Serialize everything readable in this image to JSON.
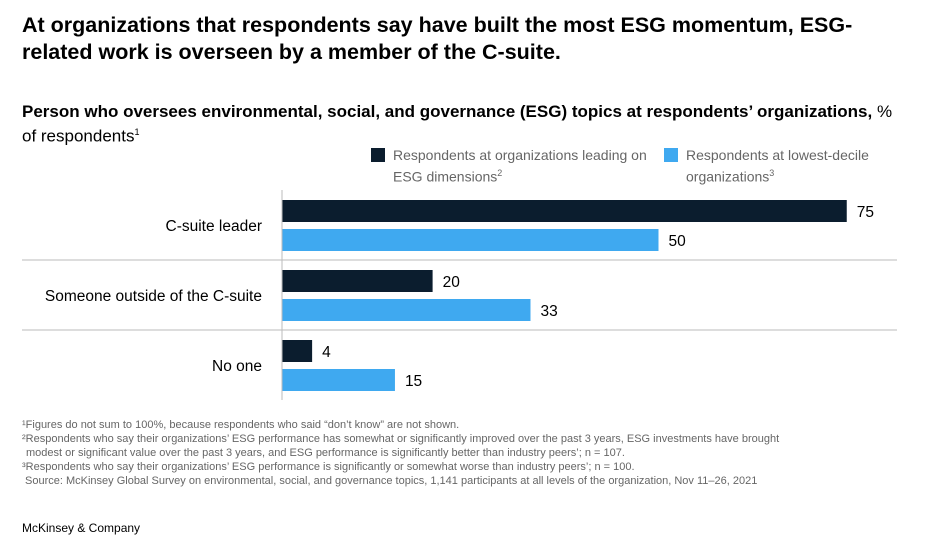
{
  "title": "At organizations that respondents say have built the most ESG momentum, ESG-related work is overseen by a member of the C-suite.",
  "subtitle_bold": "Person who oversees environmental, social, and governance (ESG) topics at respondents’ organizations,",
  "subtitle_rest": " % of respondents",
  "subtitle_sup": "1",
  "chart_data": {
    "type": "bar",
    "orientation": "horizontal",
    "categories": [
      "C-suite leader",
      "Someone outside of the C-suite",
      "No one"
    ],
    "series": [
      {
        "name": "Respondents at organizations leading on ESG dimensions",
        "sup": "2",
        "color": "#0b1d2e",
        "values": [
          75,
          20,
          4
        ]
      },
      {
        "name": "Respondents at lowest-decile organizations",
        "sup": "3",
        "color": "#3fa9f0",
        "values": [
          50,
          33,
          15
        ]
      }
    ],
    "xlim": [
      0,
      85
    ],
    "grid": false,
    "legend_position": "top"
  },
  "footnotes": [
    "¹Figures do not sum to 100%, because respondents who said “don’t know” are not shown.",
    "²Respondents who say their organizations’ ESG performance has somewhat or significantly improved over the past 3 years, ESG investments have brought",
    "  modest or significant value over the past 3 years, and ESG performance is significantly better than industry peers’; n = 107.",
    "³Respondents who say their organizations’ ESG performance is significantly or somewhat worse than industry peers’; n = 100.",
    " Source: McKinsey Global Survey on environmental, social, and governance topics, 1,141 participants at all levels of the organization, Nov 11–26, 2021"
  ],
  "brand": "McKinsey & Company"
}
